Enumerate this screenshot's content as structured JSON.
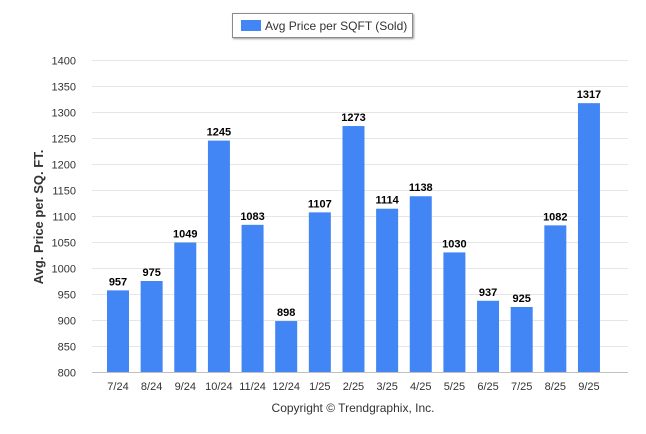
{
  "legend": {
    "label": "Avg Price per SQFT (Sold)"
  },
  "copyright": "Copyright © Trendgraphix, Inc.",
  "colors": {
    "bar": "#4285f4",
    "grid": "#e6e6e6",
    "axis": "#c0c0c0",
    "text": "#333333"
  },
  "chart_data": {
    "type": "bar",
    "title": "",
    "xlabel": "",
    "ylabel": "Avg. Price per SQ. FT.",
    "series_name": "Avg Price per SQFT (Sold)",
    "categories": [
      "7/24",
      "8/24",
      "9/24",
      "10/24",
      "11/24",
      "12/24",
      "1/25",
      "2/25",
      "3/25",
      "4/25",
      "5/25",
      "6/25",
      "7/25",
      "8/25",
      "9/25"
    ],
    "values": [
      957,
      975,
      1049,
      1245,
      1083,
      898,
      1107,
      1273,
      1114,
      1138,
      1030,
      937,
      925,
      1082,
      1317
    ],
    "ylim": [
      800,
      1400
    ],
    "yticks": [
      800,
      850,
      900,
      950,
      1000,
      1050,
      1100,
      1150,
      1200,
      1250,
      1300,
      1350,
      1400
    ],
    "grid": true,
    "legend_position": "top-center"
  }
}
